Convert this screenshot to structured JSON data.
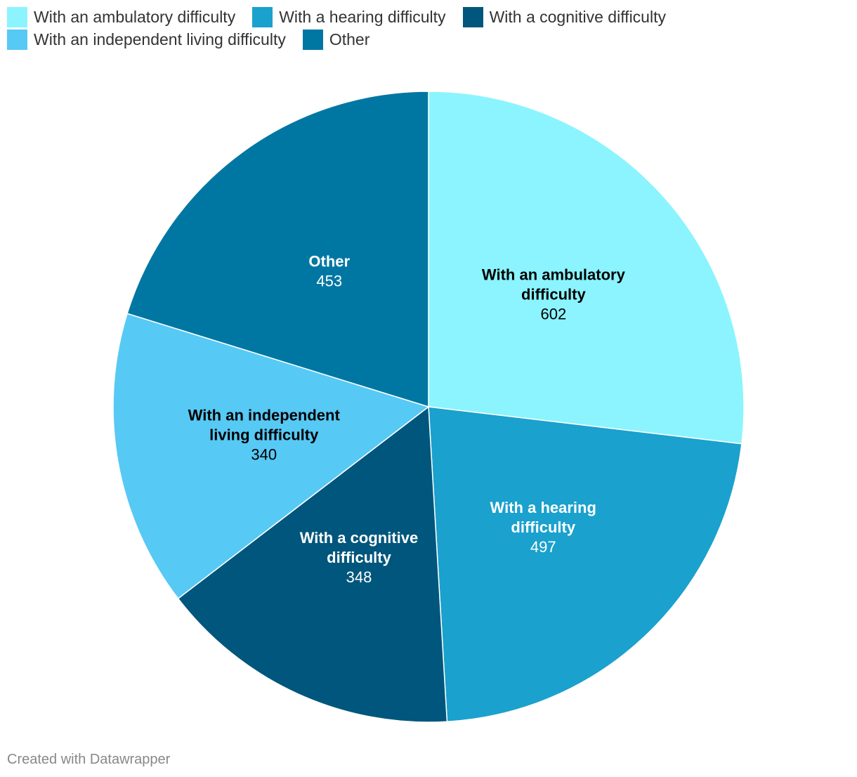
{
  "chart_data": {
    "type": "pie",
    "title": "",
    "slices": [
      {
        "label": "With an ambulatory difficulty",
        "label_lines": [
          "With an ambulatory",
          "difficulty"
        ],
        "value": 602,
        "color": "#8bf4fe",
        "text_color": "#000000"
      },
      {
        "label": "With a hearing difficulty",
        "label_lines": [
          "With a hearing",
          "difficulty"
        ],
        "value": 497,
        "color": "#1aa1cd",
        "text_color": "#ffffff"
      },
      {
        "label": "With a cognitive difficulty",
        "label_lines": [
          "With a cognitive",
          "difficulty"
        ],
        "value": 348,
        "color": "#00567c",
        "text_color": "#ffffff"
      },
      {
        "label": "With an independent living difficulty",
        "label_lines": [
          "With an independent",
          "living difficulty"
        ],
        "value": 340,
        "color": "#57c9f5",
        "text_color": "#000000"
      },
      {
        "label": "Other",
        "label_lines": [
          "Other"
        ],
        "value": 453,
        "color": "#0077a3",
        "text_color": "#ffffff"
      }
    ],
    "legend": {
      "placement": "top-left",
      "rows": [
        [
          "With an ambulatory difficulty",
          "With a hearing difficulty",
          "With a cognitive difficulty"
        ],
        [
          "With an independent living difficulty",
          "Other"
        ]
      ]
    }
  },
  "footer": {
    "credit": "Created with Datawrapper"
  }
}
